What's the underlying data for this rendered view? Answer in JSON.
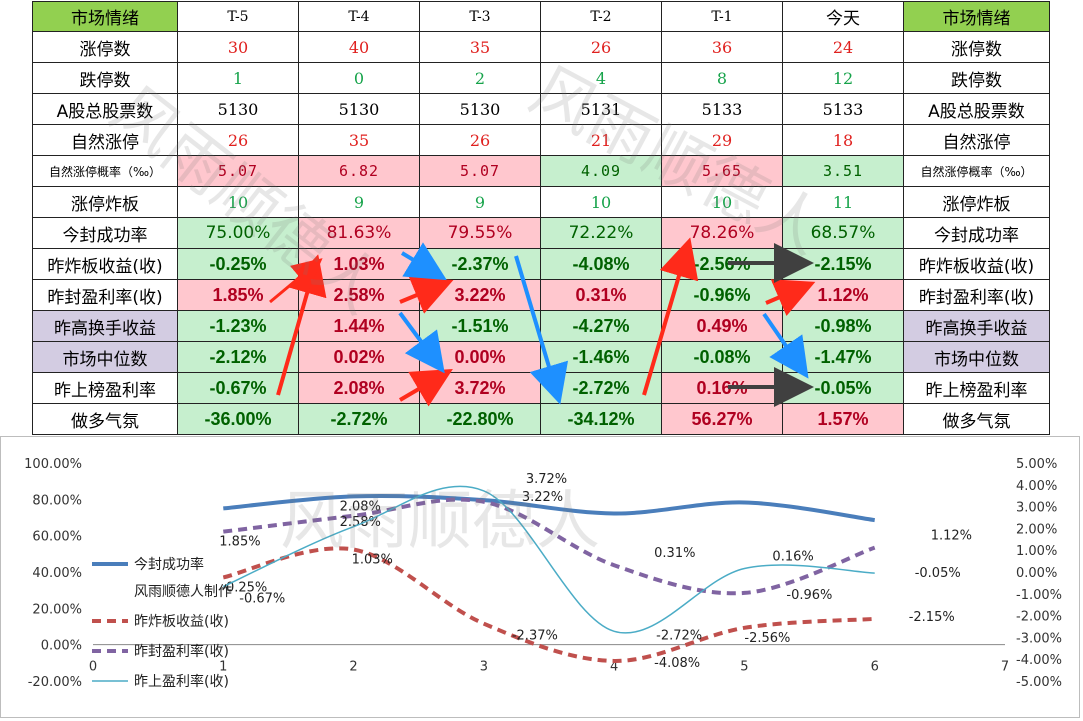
{
  "table": {
    "header": [
      "市场情绪",
      "T-5",
      "T-4",
      "T-3",
      "T-2",
      "T-1",
      "今天",
      "市场情绪"
    ],
    "rows": [
      {
        "label": "涨停数",
        "values": [
          "30",
          "40",
          "35",
          "26",
          "36",
          "24"
        ]
      },
      {
        "label": "跌停数",
        "values": [
          "1",
          "0",
          "2",
          "4",
          "8",
          "12"
        ]
      },
      {
        "label": "A股总股票数",
        "values": [
          "5130",
          "5130",
          "5130",
          "5131",
          "5133",
          "5133"
        ]
      },
      {
        "label": "自然涨停",
        "values": [
          "26",
          "35",
          "26",
          "21",
          "29",
          "18"
        ]
      },
      {
        "label": "自然涨停概率（‰）",
        "values": [
          "5.07",
          "6.82",
          "5.07",
          "4.09",
          "5.65",
          "3.51"
        ]
      },
      {
        "label": "涨停炸板",
        "values": [
          "10",
          "9",
          "9",
          "10",
          "10",
          "11"
        ]
      },
      {
        "label": "今封成功率",
        "values": [
          "75.00%",
          "81.63%",
          "79.55%",
          "72.22%",
          "78.26%",
          "68.57%"
        ]
      },
      {
        "label": "昨炸板收益(收)",
        "values": [
          "-0.25%",
          "1.03%",
          "-2.37%",
          "-4.08%",
          "-2.56%",
          "-2.15%"
        ]
      },
      {
        "label": "昨封盈利率(收)",
        "values": [
          "1.85%",
          "2.58%",
          "3.22%",
          "0.31%",
          "-0.96%",
          "1.12%"
        ]
      },
      {
        "label": "昨高换手收益",
        "values": [
          "-1.23%",
          "1.44%",
          "-1.51%",
          "-4.27%",
          "0.49%",
          "-0.98%"
        ]
      },
      {
        "label": "市场中位数",
        "values": [
          "-2.12%",
          "0.02%",
          "0.00%",
          "-1.46%",
          "-0.08%",
          "-1.47%"
        ]
      },
      {
        "label": "昨上榜盈利率",
        "values": [
          "-0.67%",
          "2.08%",
          "3.72%",
          "-2.72%",
          "0.16%",
          "-0.05%"
        ]
      },
      {
        "label": "做多气氛",
        "values": [
          "-36.00%",
          "-2.72%",
          "-22.80%",
          "-34.12%",
          "56.27%",
          "1.57%"
        ]
      }
    ]
  },
  "watermark_text": "风雨顺德人",
  "colors": {
    "header_green": "#92d050",
    "cell_green": "#c6efce",
    "cell_pink": "#ffc7ce",
    "label_purple": "#d3cce2",
    "up_red": "#e0211f",
    "down_green": "#16a34a",
    "arrow_red": "#ff2a1a",
    "arrow_blue": "#1e90ff",
    "arrow_gray": "#404040"
  },
  "chart_data": {
    "type": "line",
    "x": [
      1,
      2,
      3,
      4,
      5,
      6
    ],
    "xlim": [
      0,
      7
    ],
    "x_ticks": [
      "0",
      "1",
      "2",
      "3",
      "4",
      "5",
      "6",
      "7"
    ],
    "y_left_lim": [
      -20,
      100
    ],
    "y_left_ticks": [
      "100.00%",
      "80.00%",
      "60.00%",
      "40.00%",
      "20.00%",
      "0.00%",
      "-20.00%"
    ],
    "y_right_lim": [
      -5,
      5
    ],
    "y_right_ticks": [
      "5.00%",
      "4.00%",
      "3.00%",
      "2.00%",
      "1.00%",
      "0.00%",
      "-1.00%",
      "-2.00%",
      "-3.00%",
      "-4.00%",
      "-5.00%"
    ],
    "legend_placement": "left",
    "legend_caption": "风雨顺德人制作",
    "series": [
      {
        "name": "今封成功率",
        "axis": "left",
        "values": [
          75.0,
          81.63,
          79.55,
          72.22,
          78.26,
          68.57
        ],
        "color": "#4a7ebb",
        "style": "solid-thick"
      },
      {
        "name": "昨炸板收益(收)",
        "axis": "right",
        "values": [
          -0.25,
          1.03,
          -2.37,
          -4.08,
          -2.56,
          -2.15
        ],
        "color": "#c0504d",
        "style": "dashed",
        "labels": [
          "-0.25%",
          "1.03%",
          "-2.37%",
          "-4.08%",
          "-2.56%",
          "-2.15%"
        ]
      },
      {
        "name": "昨封盈利率(收)",
        "axis": "right",
        "values": [
          1.85,
          2.58,
          3.22,
          0.31,
          -0.96,
          1.12
        ],
        "color": "#8064a2",
        "style": "dashed",
        "labels": [
          "1.85%",
          "2.58%",
          "3.22%",
          "0.31%",
          "-0.96%",
          "1.12%"
        ]
      },
      {
        "name": "昨上盈利率(收)",
        "axis": "right",
        "values": [
          -0.67,
          2.08,
          3.72,
          -2.72,
          0.16,
          -0.05
        ],
        "color": "#4bacc6",
        "style": "thin",
        "labels": [
          "-0.67%",
          "2.08%",
          "3.72%",
          "-2.72%",
          "0.16%",
          "-0.05%"
        ]
      }
    ]
  }
}
